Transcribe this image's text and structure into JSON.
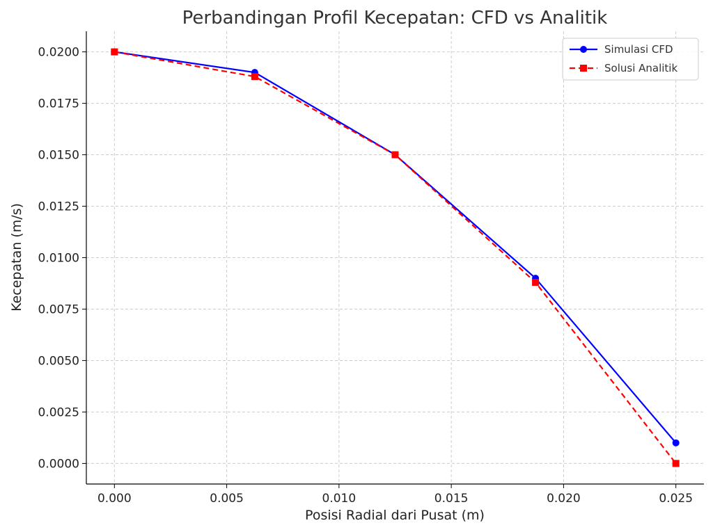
{
  "chart_data": {
    "type": "line",
    "title": "Perbandingan Profil Kecepatan: CFD vs Analitik",
    "xlabel": "Posisi Radial dari Pusat (m)",
    "ylabel": "Kecepatan (m/s)",
    "xlim": [
      -0.00125,
      0.02625
    ],
    "ylim": [
      -0.001,
      0.021
    ],
    "xticks": [
      0.0,
      0.005,
      0.01,
      0.015,
      0.02,
      0.025
    ],
    "xtick_labels": [
      "0.000",
      "0.005",
      "0.010",
      "0.015",
      "0.020",
      "0.025"
    ],
    "yticks": [
      0.0,
      0.0025,
      0.005,
      0.0075,
      0.01,
      0.0125,
      0.015,
      0.0175,
      0.02
    ],
    "ytick_labels": [
      "0.0000",
      "0.0025",
      "0.0050",
      "0.0075",
      "0.0100",
      "0.0125",
      "0.0150",
      "0.0175",
      "0.0200"
    ],
    "grid": true,
    "legend_position": "top-right",
    "x": [
      0.0,
      0.00625,
      0.0125,
      0.01875,
      0.025
    ],
    "series": [
      {
        "name": "Simulasi CFD",
        "values": [
          0.02,
          0.019,
          0.015,
          0.009,
          0.001
        ],
        "color": "#0000ff",
        "marker": "circle",
        "linestyle": "solid"
      },
      {
        "name": "Solusi Analitik",
        "values": [
          0.02,
          0.0188,
          0.015,
          0.0088,
          0.0
        ],
        "color": "#ff0000",
        "marker": "square",
        "linestyle": "dashed"
      }
    ]
  }
}
